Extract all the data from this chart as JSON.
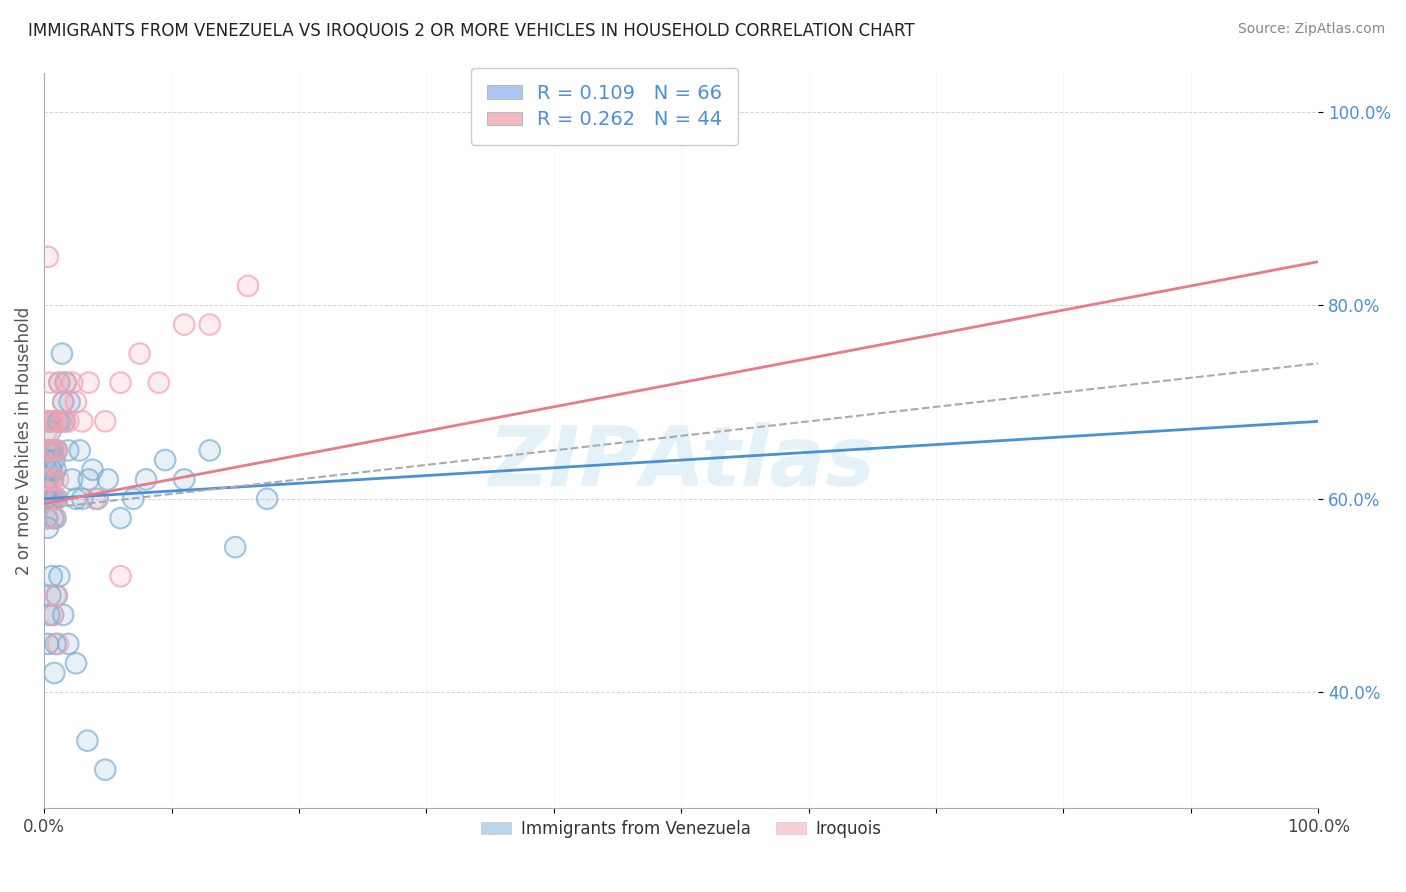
{
  "title": "IMMIGRANTS FROM VENEZUELA VS IROQUOIS 2 OR MORE VEHICLES IN HOUSEHOLD CORRELATION CHART",
  "source": "Source: ZipAtlas.com",
  "ylabel": "2 or more Vehicles in Household",
  "legend_entries": [
    {
      "label": "R = 0.109   N = 66",
      "color": "#aec6f0"
    },
    {
      "label": "R = 0.262   N = 44",
      "color": "#f4b8c1"
    }
  ],
  "legend_bottom": [
    "Immigrants from Venezuela",
    "Iroquois"
  ],
  "blue_color": "#7bafd4",
  "pink_color": "#f4a0b0",
  "blue_line_color": "#4a90d9",
  "pink_line_color": "#e87a8a",
  "dashed_line_color": "#aaaaaa",
  "ytick_labels": [
    "40.0%",
    "60.0%",
    "80.0%",
    "100.0%"
  ],
  "ytick_values": [
    0.4,
    0.6,
    0.8,
    1.0
  ],
  "xtick_positions": [
    0.0,
    0.1,
    0.2,
    0.3,
    0.4,
    0.5,
    0.6,
    0.7,
    0.8,
    0.9,
    1.0
  ],
  "xtick_labels": [
    "0.0%",
    "",
    "",
    "",
    "",
    "",
    "",
    "",
    "",
    "",
    "100.0%"
  ],
  "blue_scatter_x": [
    0.001,
    0.001,
    0.001,
    0.002,
    0.002,
    0.002,
    0.002,
    0.003,
    0.003,
    0.003,
    0.004,
    0.004,
    0.004,
    0.005,
    0.005,
    0.005,
    0.006,
    0.006,
    0.007,
    0.007,
    0.007,
    0.008,
    0.008,
    0.009,
    0.009,
    0.01,
    0.01,
    0.011,
    0.012,
    0.013,
    0.014,
    0.015,
    0.016,
    0.017,
    0.019,
    0.02,
    0.022,
    0.025,
    0.028,
    0.03,
    0.035,
    0.038,
    0.042,
    0.05,
    0.06,
    0.07,
    0.08,
    0.095,
    0.11,
    0.13,
    0.15,
    0.175,
    0.003,
    0.004,
    0.005,
    0.006,
    0.007,
    0.008,
    0.009,
    0.01,
    0.012,
    0.015,
    0.019,
    0.025,
    0.034,
    0.048
  ],
  "blue_scatter_y": [
    0.62,
    0.6,
    0.64,
    0.58,
    0.61,
    0.63,
    0.65,
    0.57,
    0.6,
    0.62,
    0.65,
    0.68,
    0.6,
    0.63,
    0.65,
    0.67,
    0.6,
    0.63,
    0.58,
    0.62,
    0.65,
    0.6,
    0.64,
    0.58,
    0.63,
    0.6,
    0.65,
    0.68,
    0.72,
    0.68,
    0.75,
    0.7,
    0.68,
    0.72,
    0.65,
    0.7,
    0.62,
    0.6,
    0.65,
    0.6,
    0.62,
    0.63,
    0.6,
    0.62,
    0.58,
    0.6,
    0.62,
    0.64,
    0.62,
    0.65,
    0.55,
    0.6,
    0.45,
    0.48,
    0.5,
    0.52,
    0.48,
    0.42,
    0.45,
    0.5,
    0.52,
    0.48,
    0.45,
    0.43,
    0.35,
    0.32
  ],
  "pink_scatter_x": [
    0.001,
    0.002,
    0.002,
    0.003,
    0.003,
    0.003,
    0.004,
    0.004,
    0.005,
    0.005,
    0.006,
    0.006,
    0.007,
    0.007,
    0.008,
    0.008,
    0.009,
    0.01,
    0.01,
    0.011,
    0.012,
    0.013,
    0.015,
    0.016,
    0.017,
    0.019,
    0.022,
    0.025,
    0.03,
    0.035,
    0.04,
    0.048,
    0.06,
    0.075,
    0.09,
    0.11,
    0.13,
    0.16,
    0.003,
    0.005,
    0.007,
    0.009,
    0.011,
    0.06
  ],
  "pink_scatter_y": [
    0.62,
    0.65,
    0.67,
    0.58,
    0.62,
    0.68,
    0.6,
    0.65,
    0.62,
    0.68,
    0.6,
    0.65,
    0.62,
    0.68,
    0.58,
    0.65,
    0.68,
    0.6,
    0.65,
    0.62,
    0.72,
    0.68,
    0.7,
    0.68,
    0.72,
    0.68,
    0.72,
    0.7,
    0.68,
    0.72,
    0.6,
    0.68,
    0.72,
    0.75,
    0.72,
    0.78,
    0.78,
    0.82,
    0.85,
    0.72,
    0.48,
    0.5,
    0.45,
    0.52
  ],
  "blue_line": {
    "x0": 0.0,
    "x1": 1.0,
    "y0": 0.6,
    "y1": 0.68
  },
  "pink_line": {
    "x0": 0.0,
    "x1": 1.0,
    "y0": 0.595,
    "y1": 0.845
  },
  "dashed_line": {
    "x0": 0.0,
    "x1": 1.0,
    "y0": 0.59,
    "y1": 0.74
  },
  "xlim": [
    0.0,
    1.0
  ],
  "ylim": [
    0.28,
    1.04
  ],
  "figsize": [
    14.06,
    8.92
  ],
  "dpi": 100
}
